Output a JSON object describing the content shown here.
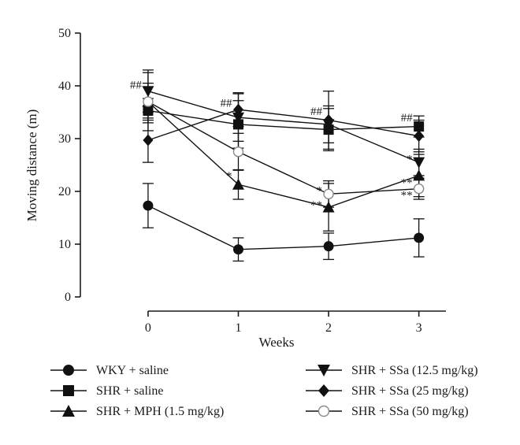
{
  "chart_data": {
    "type": "line",
    "xlabel": "Weeks",
    "ylabel": "Moving distance (m)",
    "x": [
      0,
      1,
      2,
      3
    ],
    "xlim": [
      -0.75,
      3.3
    ],
    "ylim": [
      0,
      50
    ],
    "y_ticks": [
      0,
      10,
      20,
      30,
      40,
      50
    ],
    "x_ticks": [
      0,
      1,
      2,
      3
    ],
    "grid": false,
    "legend_placement": "bottom",
    "series": [
      {
        "name": "WKY + saline",
        "marker": "circle",
        "values": [
          17.3,
          9.0,
          9.6,
          11.2
        ],
        "errors": [
          4.2,
          2.2,
          2.5,
          3.6
        ]
      },
      {
        "name": "SHR + saline",
        "marker": "square",
        "values": [
          35.3,
          32.7,
          31.7,
          32.3
        ],
        "errors": [
          2.3,
          4.5,
          4.0,
          2.0
        ]
      },
      {
        "name": "SHR + MPH (1.5 mg/kg)",
        "marker": "triangle-up",
        "values": [
          37.0,
          21.3,
          17.0,
          23.0
        ],
        "errors": [
          5.5,
          2.8,
          4.5,
          4.0
        ]
      },
      {
        "name": "SHR + SSa (12.5 mg/kg)",
        "marker": "triangle-down",
        "values": [
          39.0,
          34.0,
          32.7,
          25.5
        ],
        "errors": [
          4.0,
          4.5,
          3.5,
          2.5
        ]
      },
      {
        "name": "SHR + SSa (25 mg/kg)",
        "marker": "diamond",
        "values": [
          29.7,
          35.5,
          33.5,
          30.5
        ],
        "errors": [
          4.2,
          3.2,
          5.5,
          3.0
        ]
      },
      {
        "name": "SHR + SSa (50 mg/kg)",
        "marker": "open-circle",
        "values": [
          37.0,
          27.5,
          19.5,
          20.5
        ],
        "errors": [
          3.5,
          3.5,
          2.5,
          2.0
        ]
      }
    ],
    "annotations": [
      {
        "text": "##",
        "x": 0,
        "y": 40.2,
        "side": "left"
      },
      {
        "text": "##",
        "x": 1,
        "y": 36.8,
        "side": "left"
      },
      {
        "text": "##",
        "x": 2,
        "y": 35.2,
        "side": "left"
      },
      {
        "text": "##",
        "x": 3,
        "y": 34.0,
        "side": "left"
      },
      {
        "text": "*",
        "x": 1,
        "y": 23.0,
        "side": "left"
      },
      {
        "text": "*",
        "x": 2,
        "y": 20.2,
        "side": "left"
      },
      {
        "text": "**",
        "x": 2,
        "y": 17.5,
        "side": "left"
      },
      {
        "text": "*",
        "x": 3,
        "y": 26.2,
        "side": "left"
      },
      {
        "text": "**",
        "x": 3,
        "y": 21.7,
        "side": "left"
      },
      {
        "text": "**",
        "x": 3,
        "y": 19.3,
        "side": "left"
      }
    ]
  }
}
